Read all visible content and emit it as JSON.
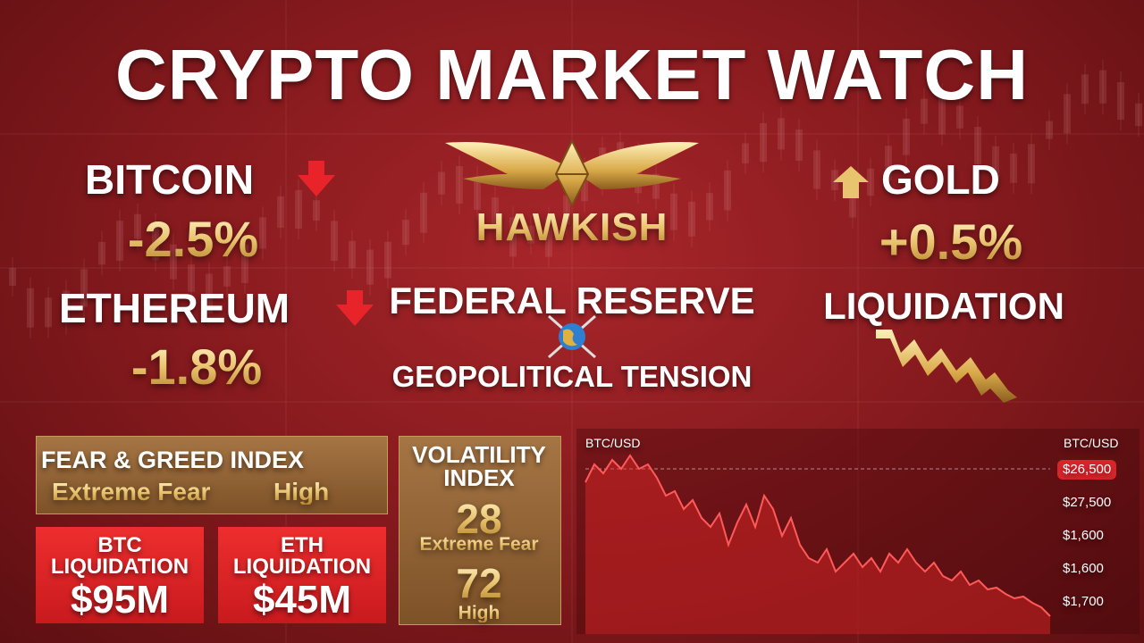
{
  "title": "CRYPTO MARKET WATCH",
  "bitcoin": {
    "name": "BITCOIN",
    "change": "-2.5%"
  },
  "ethereum": {
    "name": "ETHEREUM",
    "change": "-1.8%"
  },
  "center": {
    "logo": "HAWKISH",
    "headline": "FEDERAL RESERVE",
    "subline": "GEOPOLITICAL TENSION"
  },
  "gold": {
    "name": "GOLD",
    "change": "+0.5%"
  },
  "liquidation": "LIQUIDATION",
  "fear_greed": {
    "title": "FEAR & GREED INDEX",
    "labels": [
      "Extreme Fear",
      "High"
    ]
  },
  "btc_liquidation": {
    "label": [
      "BTC",
      "LIQUIDATION"
    ],
    "amount": "$95M"
  },
  "eth_liquidation": {
    "label": [
      "ETH",
      "LIQUIDATION"
    ],
    "amount": "$45M"
  },
  "volatility": {
    "title": [
      "VOLATILITY",
      "INDEX"
    ],
    "items": [
      {
        "value": 28,
        "label": "Extreme Fear"
      },
      {
        "value": 72,
        "label": "High"
      }
    ]
  },
  "price_chart": {
    "left_label": "BTC/USD",
    "right_label": "BTC/USD",
    "price_labels": [
      "$26,500",
      "$27,500",
      "$1,600",
      "$1,600",
      "$1,700"
    ]
  }
}
